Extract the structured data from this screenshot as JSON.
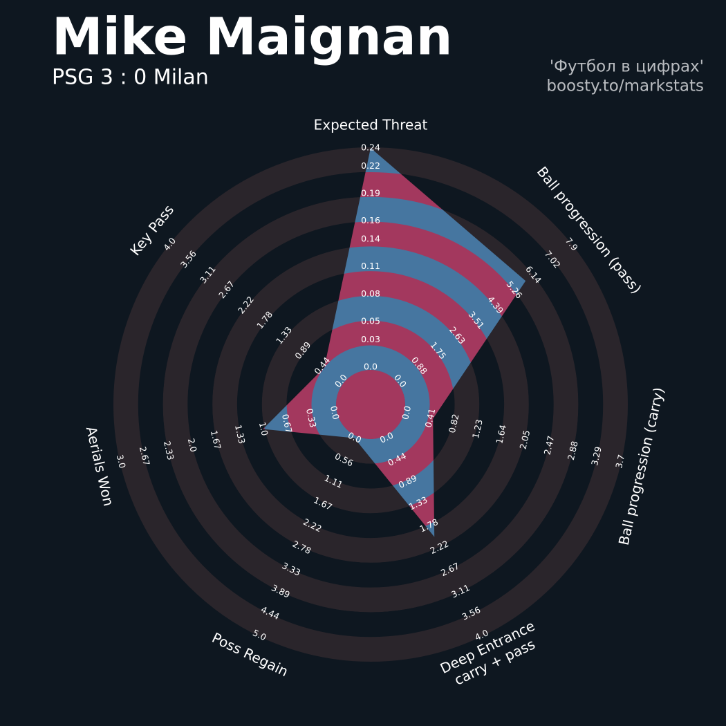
{
  "chart_data": {
    "type": "radar",
    "title": "Mike Maignan",
    "subtitle": "PSG 3 : 0 Milan",
    "credits": [
      "'Футбол в цифрах'",
      "boosty.to/markstats"
    ],
    "categories": [
      "Expected Threat",
      "Ball progression (pass)",
      "Ball progression (carry)",
      [
        "Deep Entrance",
        "carry + pass"
      ],
      "Poss Regain",
      "Aerials Won",
      "Key Pass"
    ],
    "values": [
      0.24,
      5.8,
      0.45,
      2.0,
      0,
      1.0,
      0.4
    ],
    "colors": {
      "background": "#0e1720",
      "ring": "#2a252b",
      "fill": "#4676a0",
      "fill_alt": "#a3385e"
    },
    "axes": [
      {
        "lim": [
          0,
          0.24
        ],
        "ticks": [
          {
            "value": 0,
            "label": "0.0"
          },
          0.03,
          0.05,
          0.08,
          0.11,
          0.14,
          0.16,
          0.19,
          0.22,
          0.24
        ]
      },
      {
        "lim": [
          0,
          7.9
        ],
        "ticks": [
          {
            "value": 0,
            "label": "0.0"
          },
          0.88,
          1.75,
          2.63,
          3.51,
          4.39,
          5.26,
          6.14,
          7.02,
          7.9
        ]
      },
      {
        "lim": [
          0,
          3.7
        ],
        "ticks": [
          {
            "value": 0,
            "label": "0.0"
          },
          0.41,
          0.82,
          1.23,
          1.64,
          2.05,
          2.47,
          2.88,
          3.29,
          3.7
        ]
      },
      {
        "lim": [
          0,
          4.0
        ],
        "ticks": [
          {
            "value": 0,
            "label": "0.0"
          },
          0.44,
          0.89,
          1.33,
          1.78,
          2.22,
          2.67,
          3.11,
          3.56,
          {
            "value": 4,
            "label": "4.0"
          }
        ]
      },
      {
        "lim": [
          0,
          5.0
        ],
        "ticks": [
          {
            "value": 0,
            "label": "0.0"
          },
          0.56,
          1.11,
          1.67,
          2.22,
          2.78,
          3.33,
          3.89,
          4.44,
          {
            "value": 5,
            "label": "5.0"
          }
        ]
      },
      {
        "lim": [
          0,
          3.0
        ],
        "ticks": [
          {
            "value": 0,
            "label": "0.0"
          },
          0.33,
          0.67,
          {
            "value": 1,
            "label": "1.0"
          },
          1.33,
          1.67,
          {
            "value": 2,
            "label": "2.0"
          },
          2.33,
          2.67,
          {
            "value": 3,
            "label": "3.0"
          }
        ]
      },
      {
        "lim": [
          0,
          4.0
        ],
        "ticks": [
          {
            "value": 0,
            "label": "0.0"
          },
          0.44,
          0.89,
          1.33,
          1.78,
          2.22,
          2.67,
          3.11,
          3.56,
          {
            "value": 4,
            "label": "4.0"
          }
        ]
      }
    ]
  }
}
